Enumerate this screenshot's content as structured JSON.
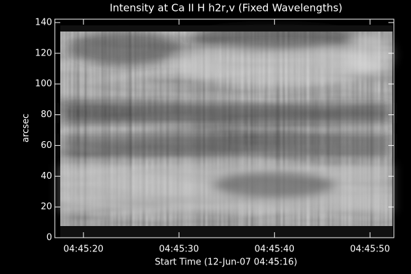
{
  "chart_data": {
    "type": "image",
    "title": "Intensity at Ca II H h2r,v (Fixed Wavelengths)",
    "xlabel": "Start Time (12-Jun-07 04:45:16)",
    "ylabel": "arcsec",
    "xlim": [
      17,
      52.5
    ],
    "xticks": [
      {
        "value": 20,
        "label": "04:45:20"
      },
      {
        "value": 30,
        "label": "04:45:30"
      },
      {
        "value": 40,
        "label": "04:45:40"
      },
      {
        "value": 50,
        "label": "04:45:50"
      }
    ],
    "ylim": [
      0,
      142.2
    ],
    "yticks": [
      0,
      20,
      40,
      60,
      80,
      100,
      120,
      140
    ]
  }
}
